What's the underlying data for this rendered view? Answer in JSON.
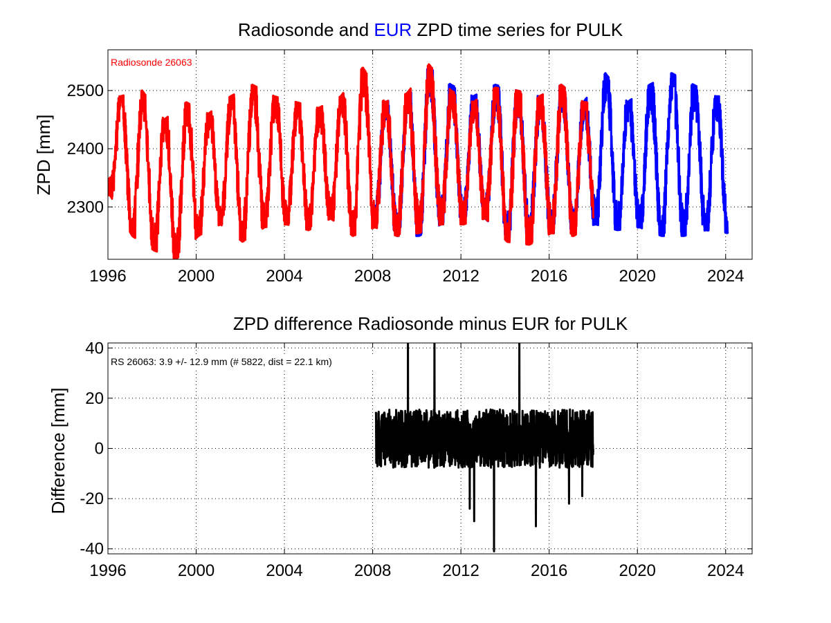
{
  "chart_data": [
    {
      "type": "line",
      "title_parts": [
        {
          "text": "Radiosonde and ",
          "color": "#000000"
        },
        {
          "text": "EUR",
          "color": "#0000ff"
        },
        {
          "text": " ZPD time series for PULK",
          "color": "#000000"
        }
      ],
      "ylabel": "ZPD [mm]",
      "xlabel": "",
      "xlim": [
        1996,
        2025.2
      ],
      "ylim": [
        2210,
        2570
      ],
      "xticks": [
        1996,
        2000,
        2004,
        2008,
        2012,
        2016,
        2020,
        2024
      ],
      "yticks": [
        2300,
        2400,
        2500
      ],
      "grid": true,
      "annotation": {
        "text": "Radiosonde 26063",
        "color": "#ff0000"
      },
      "series": [
        {
          "color": "#0000ff",
          "x_range": [
            2008.1,
            2024.1
          ],
          "seasonal_peaks": [
            [
              2008.55,
              2480
            ],
            [
              2009.55,
              2495
            ],
            [
              2010.55,
              2540
            ],
            [
              2011.55,
              2510
            ],
            [
              2012.55,
              2490
            ],
            [
              2013.55,
              2510
            ],
            [
              2014.55,
              2500
            ],
            [
              2015.55,
              2490
            ],
            [
              2016.55,
              2510
            ],
            [
              2017.55,
              2480
            ],
            [
              2018.55,
              2530
            ],
            [
              2019.55,
              2480
            ],
            [
              2020.55,
              2510
            ],
            [
              2021.55,
              2530
            ],
            [
              2022.55,
              2510
            ],
            [
              2023.55,
              2490
            ]
          ],
          "seasonal_troughs": [
            [
              2008.1,
              2270
            ],
            [
              2009.1,
              2250
            ],
            [
              2010.1,
              2250
            ],
            [
              2011.1,
              2270
            ],
            [
              2012.1,
              2270
            ],
            [
              2013.1,
              2280
            ],
            [
              2014.1,
              2245
            ],
            [
              2015.1,
              2250
            ],
            [
              2016.1,
              2255
            ],
            [
              2017.1,
              2260
            ],
            [
              2018.1,
              2270
            ],
            [
              2019.1,
              2260
            ],
            [
              2020.1,
              2265
            ],
            [
              2021.1,
              2250
            ],
            [
              2022.1,
              2250
            ],
            [
              2023.1,
              2260
            ],
            [
              2024.1,
              2255
            ]
          ]
        },
        {
          "color": "#ff0000",
          "x_range": [
            1996.0,
            2018.0
          ],
          "seasonal_peaks": [
            [
              1996.55,
              2490
            ],
            [
              1997.55,
              2500
            ],
            [
              1998.55,
              2450
            ],
            [
              1999.55,
              2480
            ],
            [
              2000.55,
              2460
            ],
            [
              2001.55,
              2490
            ],
            [
              2002.55,
              2510
            ],
            [
              2003.55,
              2490
            ],
            [
              2004.55,
              2480
            ],
            [
              2005.55,
              2470
            ],
            [
              2006.55,
              2490
            ],
            [
              2007.55,
              2540
            ],
            [
              2008.55,
              2480
            ],
            [
              2009.55,
              2495
            ],
            [
              2010.55,
              2545
            ],
            [
              2011.55,
              2500
            ],
            [
              2012.55,
              2480
            ],
            [
              2013.55,
              2505
            ],
            [
              2014.55,
              2500
            ],
            [
              2015.55,
              2490
            ],
            [
              2016.55,
              2510
            ],
            [
              2017.55,
              2480
            ]
          ],
          "seasonal_troughs": [
            [
              1996.1,
              2320
            ],
            [
              1997.1,
              2250
            ],
            [
              1998.1,
              2225
            ],
            [
              1999.1,
              2210
            ],
            [
              2000.1,
              2250
            ],
            [
              2001.1,
              2270
            ],
            [
              2002.1,
              2240
            ],
            [
              2003.1,
              2265
            ],
            [
              2004.1,
              2270
            ],
            [
              2005.1,
              2260
            ],
            [
              2006.1,
              2280
            ],
            [
              2007.1,
              2250
            ],
            [
              2008.1,
              2265
            ],
            [
              2009.1,
              2250
            ],
            [
              2010.1,
              2255
            ],
            [
              2011.1,
              2270
            ],
            [
              2012.1,
              2270
            ],
            [
              2013.1,
              2280
            ],
            [
              2014.1,
              2240
            ],
            [
              2015.1,
              2235
            ],
            [
              2016.1,
              2255
            ],
            [
              2017.1,
              2250
            ],
            [
              2018.0,
              2270
            ]
          ]
        }
      ]
    },
    {
      "type": "line",
      "title_parts": [
        {
          "text": "ZPD difference Radiosonde minus EUR for PULK",
          "color": "#000000"
        }
      ],
      "ylabel": "Difference [mm]",
      "xlabel": "",
      "xlim": [
        1996,
        2025.2
      ],
      "ylim": [
        -42,
        42
      ],
      "xticks": [
        1996,
        2000,
        2004,
        2008,
        2012,
        2016,
        2020,
        2024
      ],
      "yticks": [
        -40,
        -20,
        0,
        20,
        40
      ],
      "grid": true,
      "annotation": {
        "text": "RS 26063: 3.9 +/- 12.9 mm (# 5822, dist =  22.1 km)",
        "color": "#000000"
      },
      "series": [
        {
          "color": "#000000",
          "x_range": [
            2008.15,
            2018.0
          ],
          "mean": 3.9,
          "std": 12.9,
          "count": 5822,
          "extremes": [
            [
              2009.6,
              48
            ],
            [
              2010.8,
              45
            ],
            [
              2014.65,
              42
            ],
            [
              2013.5,
              -41
            ],
            [
              2012.6,
              -29
            ],
            [
              2015.4,
              -31
            ],
            [
              2012.4,
              -24
            ],
            [
              2016.9,
              -22
            ],
            [
              2017.5,
              -19
            ]
          ]
        }
      ]
    }
  ]
}
